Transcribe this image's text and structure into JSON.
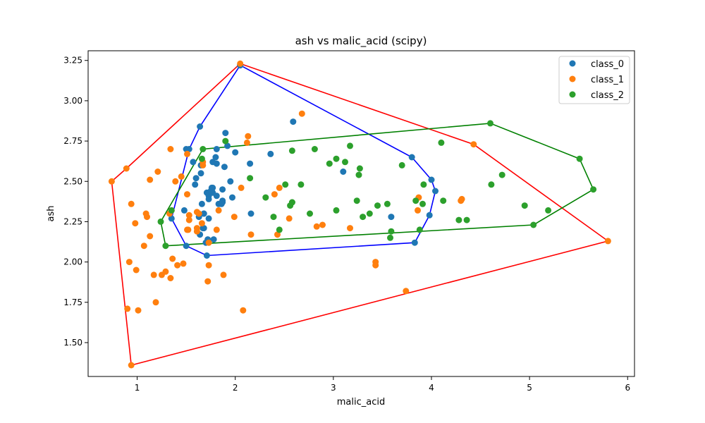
{
  "chart_data": {
    "type": "scatter",
    "title": "ash vs malic_acid (scipy)",
    "xlabel": "malic_acid",
    "ylabel": "ash",
    "xlim": [
      0.5,
      6.07
    ],
    "ylim": [
      1.29,
      3.31
    ],
    "xticks": [
      1,
      2,
      3,
      4,
      5,
      6
    ],
    "yticks": [
      1.5,
      1.75,
      2.0,
      2.25,
      2.5,
      2.75,
      3.0,
      3.25
    ],
    "grid": false,
    "legend_position": "top-right",
    "series": [
      {
        "name": "class_0",
        "color": "#1f77b4",
        "points": [
          [
            1.71,
            2.43
          ],
          [
            1.78,
            2.14
          ],
          [
            2.36,
            2.67
          ],
          [
            1.95,
            2.5
          ],
          [
            2.59,
            2.87
          ],
          [
            1.76,
            2.45
          ],
          [
            1.87,
            2.45
          ],
          [
            2.15,
            2.61
          ],
          [
            1.64,
            2.17
          ],
          [
            1.35,
            2.27
          ],
          [
            2.16,
            2.3
          ],
          [
            1.48,
            2.32
          ],
          [
            1.73,
            2.41
          ],
          [
            1.73,
            2.39
          ],
          [
            1.87,
            2.38
          ],
          [
            1.81,
            2.7
          ],
          [
            1.92,
            2.72
          ],
          [
            1.57,
            2.62
          ],
          [
            1.59,
            2.48
          ],
          [
            3.1,
            2.56
          ],
          [
            1.63,
            2.28
          ],
          [
            3.8,
            2.65
          ],
          [
            1.86,
            2.36
          ],
          [
            1.6,
            2.52
          ],
          [
            1.81,
            2.61
          ],
          [
            2.05,
            3.22
          ],
          [
            1.77,
            2.62
          ],
          [
            1.72,
            2.14
          ],
          [
            1.9,
            2.8
          ],
          [
            1.68,
            2.21
          ],
          [
            1.5,
            2.7
          ],
          [
            1.66,
            2.36
          ],
          [
            1.83,
            2.36
          ],
          [
            1.53,
            2.7
          ],
          [
            1.8,
            2.65
          ],
          [
            1.81,
            2.41
          ],
          [
            1.64,
            2.84
          ],
          [
            1.65,
            2.55
          ],
          [
            1.5,
            2.1
          ],
          [
            3.83,
            2.12
          ],
          [
            1.97,
            2.4
          ],
          [
            1.68,
            2.3
          ],
          [
            1.73,
            2.27
          ],
          [
            2.05,
            3.22
          ],
          [
            2.0,
            2.68
          ],
          [
            1.65,
            2.6
          ],
          [
            1.77,
            2.43
          ],
          [
            1.71,
            2.04
          ],
          [
            1.7,
            2.12
          ],
          [
            1.87,
            2.37
          ],
          [
            1.67,
            2.21
          ],
          [
            3.98,
            2.29
          ],
          [
            4.04,
            2.44
          ],
          [
            1.68,
            2.3
          ],
          [
            3.59,
            2.28
          ],
          [
            1.76,
            2.46
          ],
          [
            1.75,
            2.44
          ],
          [
            1.89,
            2.59
          ],
          [
            1.77,
            2.46
          ],
          [
            4.0,
            2.51
          ]
        ]
      },
      {
        "name": "class_1",
        "color": "#ff7f0e",
        "points": [
          [
            0.94,
            1.36
          ],
          [
            1.1,
            2.28
          ],
          [
            1.36,
            2.02
          ],
          [
            1.25,
            1.92
          ],
          [
            1.13,
            2.16
          ],
          [
            1.45,
            2.53
          ],
          [
            1.21,
            2.56
          ],
          [
            1.01,
            1.7
          ],
          [
            1.17,
            1.92
          ],
          [
            0.94,
            2.36
          ],
          [
            1.19,
            1.75
          ],
          [
            1.61,
            2.21
          ],
          [
            1.51,
            2.67
          ],
          [
            1.66,
            2.24
          ],
          [
            1.67,
            2.6
          ],
          [
            1.09,
            2.3
          ],
          [
            1.88,
            1.92
          ],
          [
            0.9,
            1.71
          ],
          [
            2.89,
            2.23
          ],
          [
            0.99,
            1.95
          ],
          [
            3.87,
            2.4
          ],
          [
            0.92,
            2.0
          ],
          [
            1.81,
            2.2
          ],
          [
            1.13,
            2.51
          ],
          [
            3.86,
            2.32
          ],
          [
            0.89,
            2.58
          ],
          [
            0.98,
            2.24
          ],
          [
            1.61,
            2.31
          ],
          [
            1.67,
            2.62
          ],
          [
            2.06,
            2.46
          ],
          [
            1.33,
            2.3
          ],
          [
            1.83,
            2.32
          ],
          [
            1.51,
            2.42
          ],
          [
            1.53,
            2.26
          ],
          [
            2.83,
            2.22
          ],
          [
            1.99,
            2.28
          ],
          [
            1.52,
            2.2
          ],
          [
            2.12,
            2.74
          ],
          [
            1.41,
            1.98
          ],
          [
            1.07,
            2.1
          ],
          [
            3.17,
            2.21
          ],
          [
            2.08,
            1.7
          ],
          [
            1.34,
            1.9
          ],
          [
            2.45,
            2.46
          ],
          [
            1.72,
            1.88
          ],
          [
            2.55,
            2.27
          ],
          [
            1.73,
            2.12
          ],
          [
            2.43,
            2.17
          ],
          [
            1.29,
            1.94
          ],
          [
            3.74,
            1.82
          ],
          [
            2.68,
            2.92
          ],
          [
            0.74,
            2.5
          ],
          [
            1.39,
            2.5
          ],
          [
            1.51,
            2.2
          ],
          [
            1.47,
            1.99
          ],
          [
            1.61,
            2.19
          ],
          [
            3.43,
            2.0
          ],
          [
            3.43,
            1.98
          ],
          [
            2.4,
            2.42
          ],
          [
            2.05,
            3.23
          ],
          [
            4.43,
            2.73
          ],
          [
            5.8,
            2.13
          ],
          [
            4.31,
            2.39
          ],
          [
            2.16,
            2.17
          ],
          [
            1.53,
            2.29
          ],
          [
            2.13,
            2.78
          ],
          [
            1.63,
            2.3
          ],
          [
            1.34,
            2.7
          ],
          [
            1.73,
            1.98
          ],
          [
            4.3,
            2.38
          ],
          [
            1.35,
            2.32
          ]
        ]
      },
      {
        "name": "class_2",
        "color": "#2ca02c",
        "points": [
          [
            1.24,
            2.25
          ],
          [
            1.29,
            2.1
          ],
          [
            1.35,
            2.32
          ],
          [
            1.66,
            2.64
          ],
          [
            1.67,
            2.7
          ],
          [
            1.9,
            2.75
          ],
          [
            2.31,
            2.4
          ],
          [
            2.39,
            2.28
          ],
          [
            2.51,
            2.48
          ],
          [
            2.56,
            2.35
          ],
          [
            2.58,
            2.69
          ],
          [
            2.58,
            2.37
          ],
          [
            2.67,
            2.48
          ],
          [
            2.76,
            2.3
          ],
          [
            2.81,
            2.7
          ],
          [
            2.96,
            2.61
          ],
          [
            3.03,
            2.64
          ],
          [
            3.03,
            2.32
          ],
          [
            3.12,
            2.62
          ],
          [
            3.17,
            2.72
          ],
          [
            3.24,
            2.38
          ],
          [
            3.26,
            2.54
          ],
          [
            3.27,
            2.58
          ],
          [
            3.3,
            2.28
          ],
          [
            3.37,
            2.3
          ],
          [
            3.45,
            2.35
          ],
          [
            3.55,
            2.36
          ],
          [
            3.58,
            2.15
          ],
          [
            3.59,
            2.19
          ],
          [
            3.7,
            2.6
          ],
          [
            3.84,
            2.38
          ],
          [
            3.88,
            2.2
          ],
          [
            3.91,
            2.36
          ],
          [
            3.92,
            2.48
          ],
          [
            4.1,
            2.74
          ],
          [
            4.12,
            2.38
          ],
          [
            4.28,
            2.26
          ],
          [
            4.36,
            2.26
          ],
          [
            4.6,
            2.86
          ],
          [
            4.61,
            2.48
          ],
          [
            4.72,
            2.54
          ],
          [
            4.95,
            2.35
          ],
          [
            5.04,
            2.23
          ],
          [
            5.19,
            2.32
          ],
          [
            5.51,
            2.64
          ],
          [
            5.65,
            2.45
          ],
          [
            2.45,
            2.2
          ],
          [
            2.58,
            2.37
          ],
          [
            2.15,
            2.52
          ]
        ]
      }
    ],
    "hulls": [
      {
        "series": "class_0",
        "color": "#0000ff",
        "points": [
          [
            1.35,
            2.27
          ],
          [
            1.5,
            2.1
          ],
          [
            1.71,
            2.04
          ],
          [
            3.83,
            2.12
          ],
          [
            3.98,
            2.29
          ],
          [
            4.04,
            2.44
          ],
          [
            4.0,
            2.51
          ],
          [
            3.8,
            2.65
          ],
          [
            2.05,
            3.22
          ],
          [
            1.64,
            2.84
          ],
          [
            1.53,
            2.7
          ],
          [
            1.35,
            2.27
          ]
        ]
      },
      {
        "series": "class_1",
        "color": "#ff0000",
        "points": [
          [
            0.94,
            1.36
          ],
          [
            5.8,
            2.13
          ],
          [
            4.43,
            2.73
          ],
          [
            2.05,
            3.23
          ],
          [
            0.89,
            2.58
          ],
          [
            0.74,
            2.5
          ],
          [
            0.94,
            1.36
          ]
        ]
      },
      {
        "series": "class_2",
        "color": "#008000",
        "points": [
          [
            1.24,
            2.25
          ],
          [
            1.29,
            2.1
          ],
          [
            5.04,
            2.23
          ],
          [
            5.65,
            2.45
          ],
          [
            5.51,
            2.64
          ],
          [
            4.6,
            2.86
          ],
          [
            1.67,
            2.7
          ],
          [
            1.24,
            2.25
          ]
        ]
      }
    ]
  }
}
